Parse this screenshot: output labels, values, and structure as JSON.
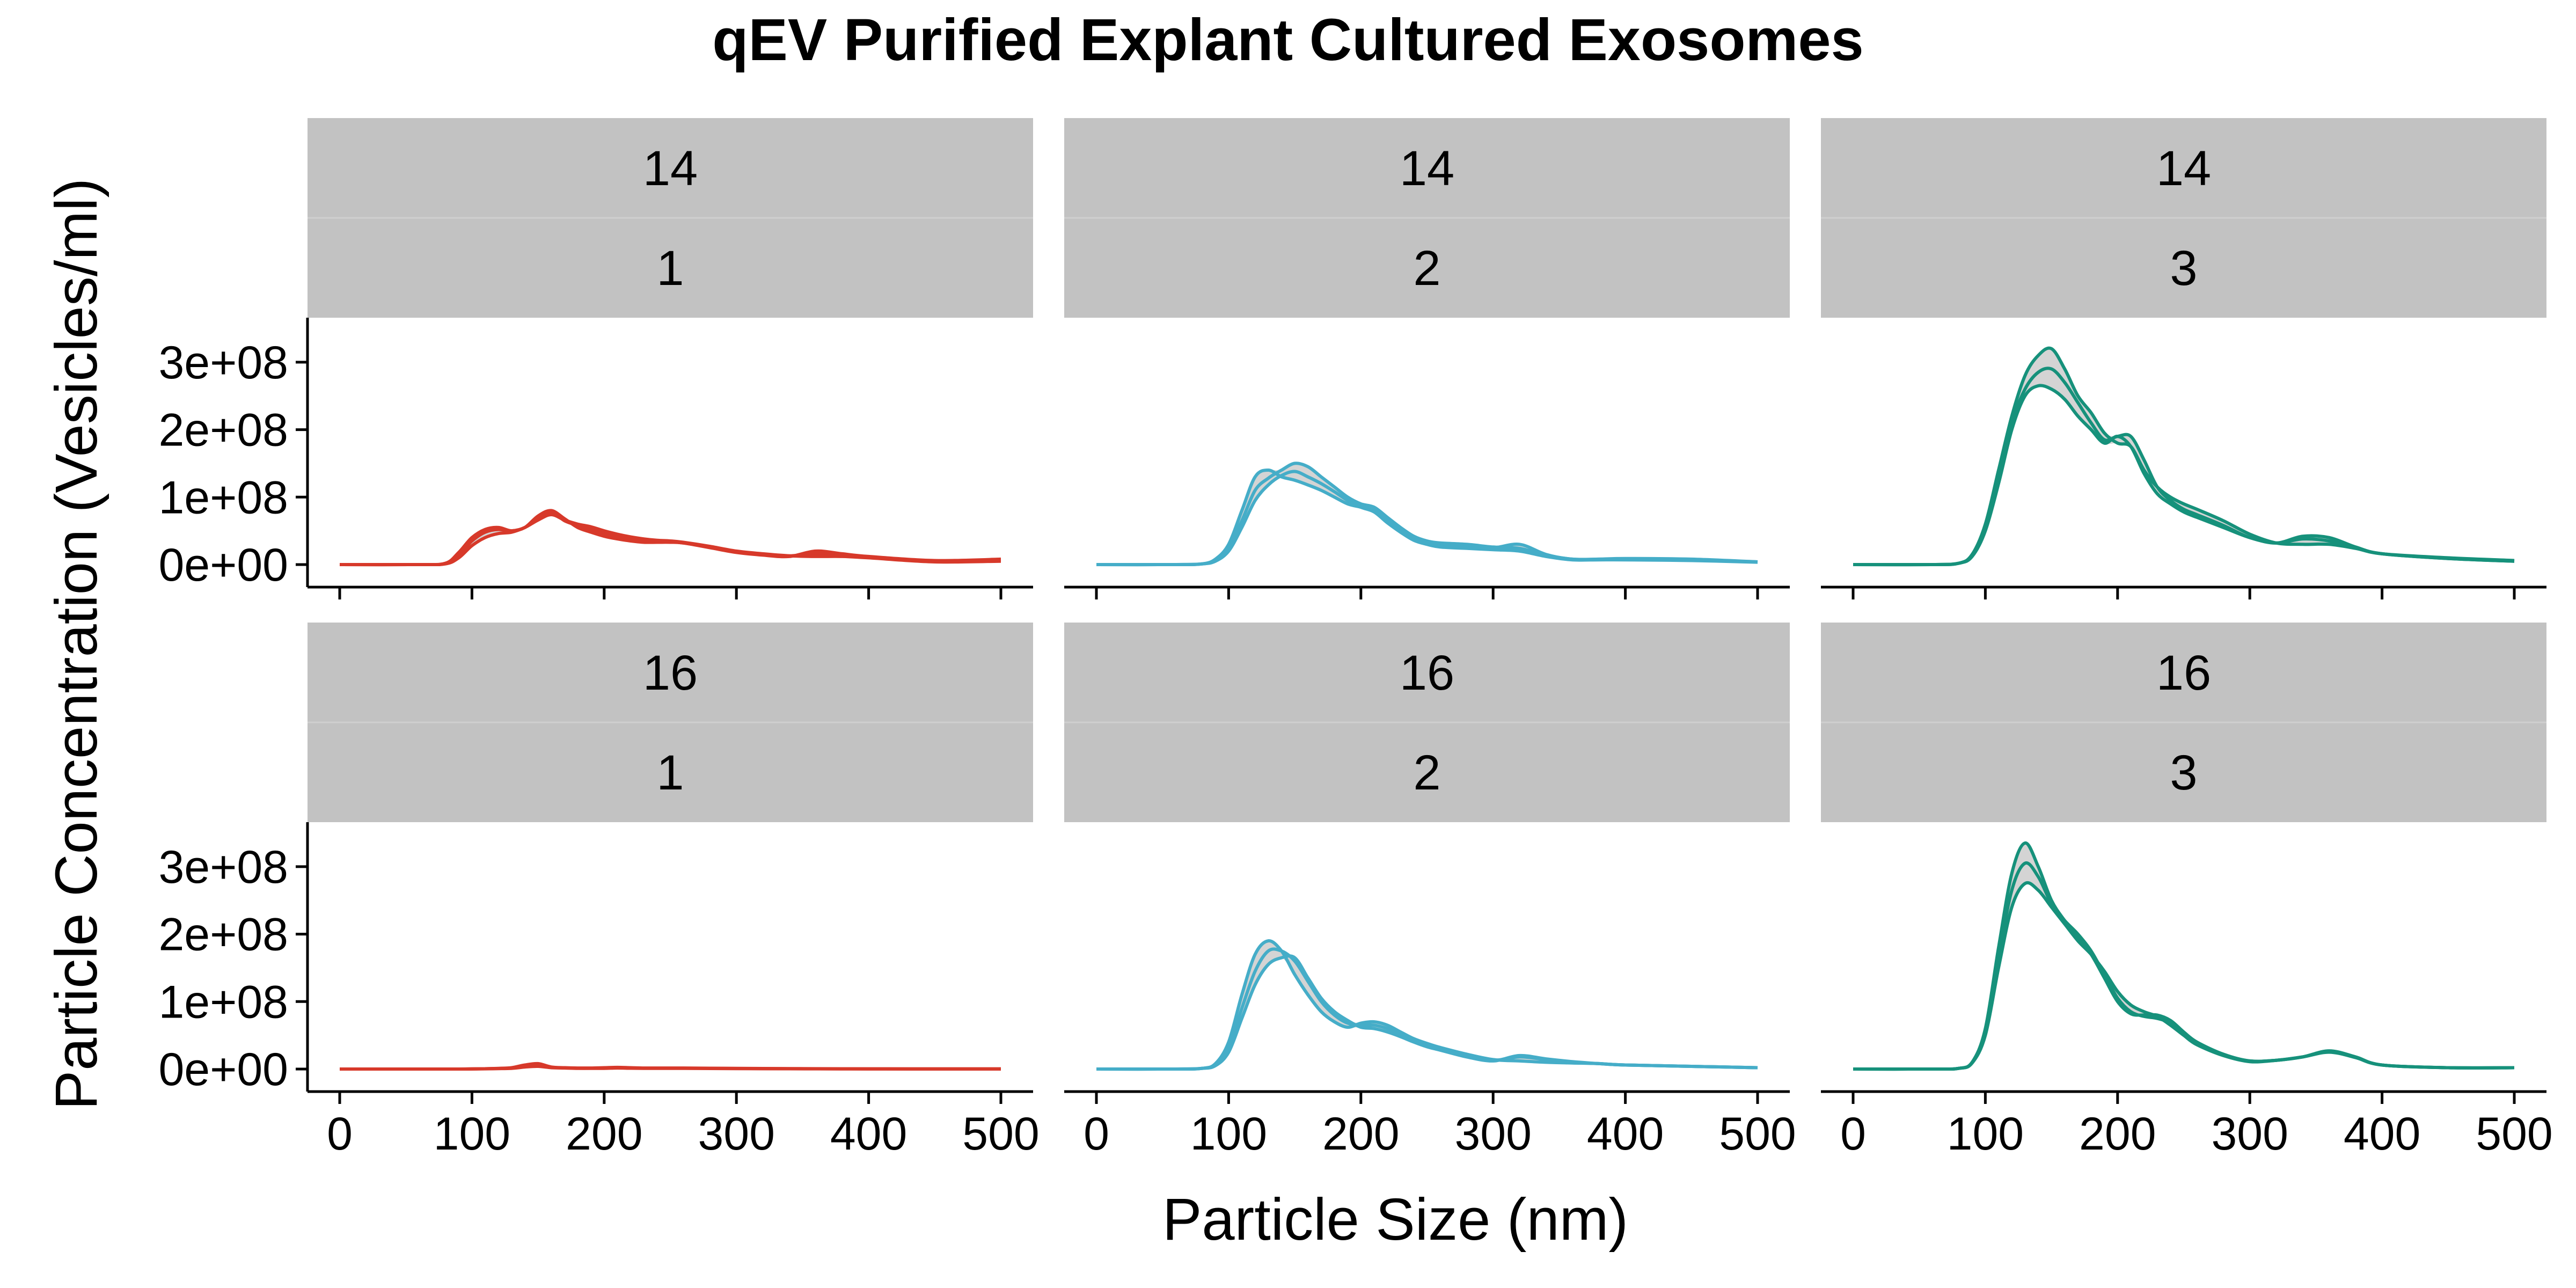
{
  "chart_data": {
    "type": "area",
    "title": "qEV Purified Explant Cultured Exosomes",
    "xlabel": "Particle Size (nm)",
    "ylabel": "Particle Concentration (Vesicles/ml)",
    "xlim": [
      0,
      500
    ],
    "ylim": [
      0,
      350000000
    ],
    "x_ticks": [
      0,
      100,
      200,
      300,
      400,
      500
    ],
    "x_tick_labels": [
      "0",
      "100",
      "200",
      "300",
      "400",
      "500"
    ],
    "y_ticks": [
      0,
      100000000,
      200000000,
      300000000
    ],
    "y_tick_labels": [
      "0e+00",
      "1e+08",
      "2e+08",
      "3e+08"
    ],
    "grid": false,
    "legend": "none",
    "band_fill": "#cccccc",
    "x": [
      0,
      60,
      80,
      90,
      100,
      110,
      120,
      130,
      140,
      150,
      160,
      170,
      180,
      190,
      200,
      210,
      220,
      230,
      240,
      250,
      260,
      280,
      300,
      320,
      340,
      360,
      380,
      400,
      450,
      500
    ],
    "panels": [
      {
        "row_label": "14",
        "col_label": "1",
        "color": "#d7392a",
        "series": [
          {
            "values": [
              0,
              0,
              2000000,
              18000000,
              40000000,
              52000000,
              55000000,
              50000000,
              55000000,
              72000000,
              80000000,
              68000000,
              55000000,
              48000000,
              42000000,
              38000000,
              35000000,
              33000000,
              33000000,
              33000000,
              32000000,
              25000000,
              18000000,
              14000000,
              12000000,
              20000000,
              16000000,
              12000000,
              6000000,
              8000000
            ]
          },
          {
            "values": [
              0,
              0,
              1500000,
              14000000,
              35000000,
              48000000,
              52000000,
              50000000,
              55000000,
              70000000,
              78000000,
              65000000,
              58000000,
              52000000,
              46000000,
              41000000,
              38000000,
              36000000,
              35000000,
              34000000,
              32000000,
              26000000,
              19000000,
              15000000,
              13000000,
              16000000,
              14000000,
              11000000,
              5000000,
              6000000
            ]
          },
          {
            "values": [
              0,
              0,
              1000000,
              10000000,
              28000000,
              40000000,
              46000000,
              48000000,
              55000000,
              66000000,
              74000000,
              66000000,
              60000000,
              56000000,
              50000000,
              45000000,
              41000000,
              38000000,
              36000000,
              35000000,
              33000000,
              27000000,
              20000000,
              16000000,
              13000000,
              12000000,
              12000000,
              10000000,
              4000000,
              5000000
            ]
          }
        ]
      },
      {
        "row_label": "14",
        "col_label": "2",
        "color": "#45adc8",
        "series": [
          {
            "values": [
              0,
              0,
              1000000,
              8000000,
              30000000,
              80000000,
              130000000,
              140000000,
              130000000,
              125000000,
              118000000,
              110000000,
              100000000,
              90000000,
              85000000,
              80000000,
              65000000,
              50000000,
              40000000,
              33000000,
              30000000,
              28000000,
              25000000,
              30000000,
              15000000,
              8000000,
              8000000,
              9000000,
              8000000,
              4000000
            ]
          },
          {
            "values": [
              0,
              0,
              1000000,
              6000000,
              24000000,
              65000000,
              110000000,
              128000000,
              140000000,
              150000000,
              145000000,
              130000000,
              115000000,
              100000000,
              90000000,
              85000000,
              70000000,
              55000000,
              42000000,
              35000000,
              32000000,
              30000000,
              26000000,
              24000000,
              14000000,
              8000000,
              8000000,
              8000000,
              7000000,
              4000000
            ]
          },
          {
            "values": [
              0,
              0,
              1000000,
              5000000,
              20000000,
              55000000,
              95000000,
              118000000,
              132000000,
              138000000,
              130000000,
              120000000,
              108000000,
              95000000,
              85000000,
              78000000,
              62000000,
              48000000,
              36000000,
              30000000,
              26000000,
              24000000,
              22000000,
              20000000,
              12000000,
              7000000,
              7000000,
              7000000,
              6000000,
              3500000
            ]
          }
        ]
      },
      {
        "row_label": "14",
        "col_label": "3",
        "color": "#16917b",
        "series": [
          {
            "values": [
              0,
              0,
              2000000,
              15000000,
              60000000,
              140000000,
              220000000,
              280000000,
              310000000,
              320000000,
              290000000,
              250000000,
              225000000,
              195000000,
              180000000,
              175000000,
              140000000,
              115000000,
              100000000,
              90000000,
              82000000,
              65000000,
              45000000,
              32000000,
              30000000,
              30000000,
              24000000,
              16000000,
              10000000,
              6000000
            ]
          },
          {
            "values": [
              0,
              0,
              2000000,
              14000000,
              55000000,
              130000000,
              210000000,
              260000000,
              285000000,
              290000000,
              270000000,
              240000000,
              210000000,
              185000000,
              190000000,
              190000000,
              155000000,
              115000000,
              95000000,
              82000000,
              74000000,
              58000000,
              40000000,
              32000000,
              38000000,
              35000000,
              25000000,
              16000000,
              9000000,
              5000000
            ]
          },
          {
            "values": [
              0,
              0,
              2000000,
              12000000,
              50000000,
              120000000,
              200000000,
              250000000,
              265000000,
              260000000,
              245000000,
              220000000,
              200000000,
              180000000,
              190000000,
              175000000,
              135000000,
              105000000,
              90000000,
              78000000,
              70000000,
              55000000,
              40000000,
              32000000,
              42000000,
              40000000,
              26000000,
              16000000,
              9000000,
              5000000
            ]
          }
        ]
      },
      {
        "row_label": "16",
        "col_label": "1",
        "color": "#d7392a",
        "series": [
          {
            "values": [
              0,
              0,
              0,
              0,
              200000,
              500000,
              1000000,
              2000000,
              6000000,
              8000000,
              3000000,
              2000000,
              1500000,
              1500000,
              2000000,
              2500000,
              2000000,
              1500000,
              1500000,
              1500000,
              1500000,
              1200000,
              1000000,
              800000,
              600000,
              500000,
              400000,
              300000,
              200000,
              200000
            ]
          },
          {
            "values": [
              0,
              0,
              0,
              0,
              150000,
              400000,
              800000,
              1500000,
              4500000,
              6000000,
              2500000,
              1800000,
              1200000,
              1200000,
              1500000,
              2000000,
              1500000,
              1200000,
              1200000,
              1200000,
              1200000,
              1000000,
              800000,
              600000,
              500000,
              400000,
              300000,
              250000,
              150000,
              150000
            ]
          },
          {
            "values": [
              0,
              0,
              0,
              0,
              100000,
              300000,
              600000,
              1000000,
              3000000,
              4000000,
              2000000,
              1500000,
              1000000,
              1000000,
              1000000,
              1500000,
              1200000,
              1000000,
              1000000,
              1000000,
              1000000,
              800000,
              600000,
              500000,
              400000,
              300000,
              250000,
              200000,
              100000,
              100000
            ]
          }
        ]
      },
      {
        "row_label": "16",
        "col_label": "2",
        "color": "#45adc8",
        "series": [
          {
            "values": [
              0,
              0,
              1000000,
              8000000,
              40000000,
              110000000,
              170000000,
              190000000,
              175000000,
              140000000,
              110000000,
              85000000,
              70000000,
              62000000,
              68000000,
              70000000,
              65000000,
              55000000,
              45000000,
              38000000,
              32000000,
              22000000,
              14000000,
              12000000,
              10000000,
              9000000,
              8000000,
              6000000,
              4000000,
              2000000
            ]
          },
          {
            "values": [
              0,
              0,
              1000000,
              6000000,
              30000000,
              90000000,
              145000000,
              175000000,
              175000000,
              160000000,
              130000000,
              100000000,
              80000000,
              68000000,
              65000000,
              65000000,
              60000000,
              52000000,
              43000000,
              36000000,
              30000000,
              20000000,
              13000000,
              18000000,
              14000000,
              10000000,
              8000000,
              6000000,
              4000000,
              2000000
            ]
          },
          {
            "values": [
              0,
              0,
              1000000,
              5000000,
              25000000,
              75000000,
              125000000,
              155000000,
              165000000,
              165000000,
              135000000,
              105000000,
              85000000,
              72000000,
              62000000,
              60000000,
              55000000,
              48000000,
              40000000,
              33000000,
              28000000,
              18000000,
              12000000,
              20000000,
              15000000,
              11000000,
              8000000,
              6000000,
              4000000,
              2000000
            ]
          }
        ]
      },
      {
        "row_label": "16",
        "col_label": "3",
        "color": "#16917b",
        "series": [
          {
            "values": [
              0,
              0,
              1000000,
              10000000,
              60000000,
              180000000,
              290000000,
              335000000,
              300000000,
              250000000,
              220000000,
              195000000,
              170000000,
              135000000,
              100000000,
              82000000,
              80000000,
              80000000,
              72000000,
              55000000,
              40000000,
              22000000,
              12000000,
              13000000,
              18000000,
              27000000,
              18000000,
              6000000,
              2000000,
              2000000
            ]
          },
          {
            "values": [
              0,
              0,
              1000000,
              10000000,
              55000000,
              165000000,
              265000000,
              305000000,
              285000000,
              245000000,
              220000000,
              200000000,
              175000000,
              140000000,
              105000000,
              85000000,
              78000000,
              75000000,
              68000000,
              52000000,
              38000000,
              21000000,
              12000000,
              13000000,
              18000000,
              26000000,
              17000000,
              6000000,
              2000000,
              2000000
            ]
          },
          {
            "values": [
              0,
              0,
              1000000,
              9000000,
              50000000,
              150000000,
              240000000,
              275000000,
              265000000,
              240000000,
              215000000,
              190000000,
              170000000,
              145000000,
              115000000,
              95000000,
              85000000,
              78000000,
              65000000,
              50000000,
              36000000,
              20000000,
              11000000,
              13000000,
              18000000,
              25000000,
              17000000,
              6000000,
              2000000,
              2000000
            ]
          }
        ]
      }
    ]
  }
}
